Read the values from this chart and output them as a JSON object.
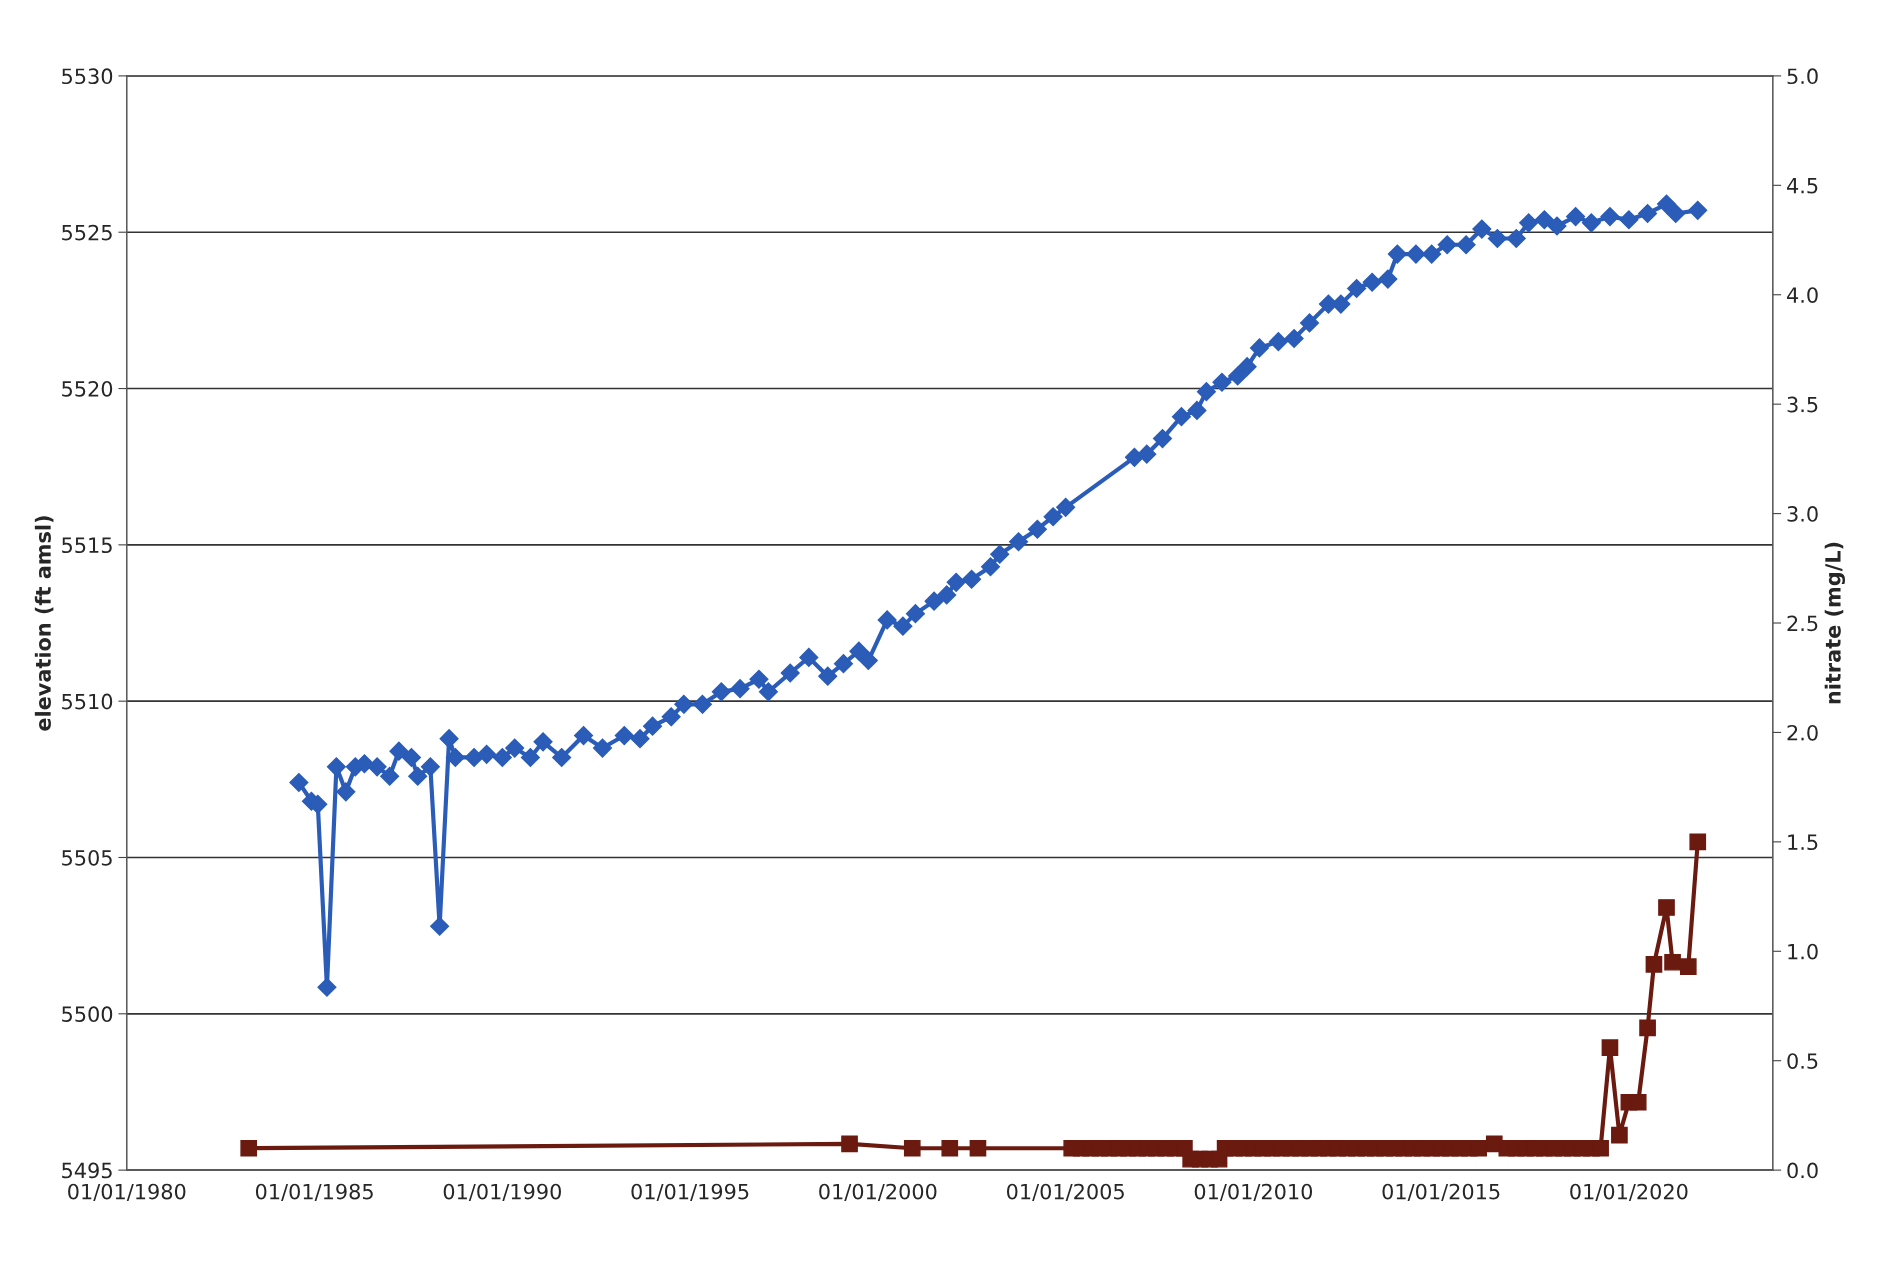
{
  "chart_data": {
    "type": "line",
    "ylabel": "elevation (ft amsl)",
    "y2label": "nitrate (mg/L)",
    "xlim": [
      "1980-01-01",
      "2023-11-01"
    ],
    "xticks": [
      {
        "value": "1980-01-01",
        "label": "01/01/1980"
      },
      {
        "value": "1985-01-01",
        "label": "01/01/1985"
      },
      {
        "value": "1990-01-01",
        "label": "01/01/1990"
      },
      {
        "value": "1995-01-01",
        "label": "01/01/1995"
      },
      {
        "value": "2000-01-01",
        "label": "01/01/2000"
      },
      {
        "value": "2005-01-01",
        "label": "01/01/2005"
      },
      {
        "value": "2010-01-01",
        "label": "01/01/2010"
      },
      {
        "value": "2015-01-01",
        "label": "01/01/2015"
      },
      {
        "value": "2020-01-01",
        "label": "01/01/2020"
      }
    ],
    "ylim": [
      5495,
      5530
    ],
    "yticks": [
      5495,
      5500,
      5505,
      5510,
      5515,
      5520,
      5525,
      5530
    ],
    "y2lim": [
      0,
      5
    ],
    "y2ticks": [
      {
        "value": 0,
        "label": "0.0"
      },
      {
        "value": 0.5,
        "label": "0.5"
      },
      {
        "value": 1,
        "label": "1.0"
      },
      {
        "value": 1.5,
        "label": "1.5"
      },
      {
        "value": 2,
        "label": "2.0"
      },
      {
        "value": 2.5,
        "label": "2.5"
      },
      {
        "value": 3,
        "label": "3.0"
      },
      {
        "value": 3.5,
        "label": "3.5"
      },
      {
        "value": 4,
        "label": "4.0"
      },
      {
        "value": 4.5,
        "label": "4.5"
      },
      {
        "value": 5,
        "label": "5.0"
      }
    ],
    "grid": "y",
    "line_style": "solid",
    "series": [
      {
        "color": "#2a5cb8",
        "marker": "diamond",
        "x": [
          "1984-08",
          "1984-12",
          "1985-02",
          "1985-05",
          "1985-08",
          "1985-11",
          "1986-02",
          "1986-05",
          "1986-09",
          "1987-01",
          "1987-04",
          "1987-08",
          "1987-10",
          "1988-02",
          "1988-05",
          "1988-08",
          "1988-10",
          "1989-04",
          "1989-08",
          "1990-01",
          "1990-05",
          "1990-10",
          "1991-02",
          "1991-08",
          "1992-03",
          "1992-09",
          "1993-04",
          "1993-09",
          "1994-01",
          "1994-07",
          "1994-11",
          "1995-05",
          "1995-11",
          "1996-05",
          "1996-11",
          "1997-02",
          "1997-09",
          "1998-03",
          "1998-09",
          "1999-02",
          "1999-07",
          "1999-10",
          "2000-04",
          "2000-09",
          "2001-01",
          "2001-07",
          "2001-11",
          "2002-02",
          "2002-07",
          "2003-01",
          "2003-04",
          "2003-10",
          "2004-04",
          "2004-09",
          "2005-01",
          "2006-11",
          "2007-03",
          "2007-08",
          "2008-02",
          "2008-07",
          "2008-10",
          "2009-03",
          "2009-08",
          "2009-11",
          "2010-03",
          "2010-09",
          "2011-02",
          "2011-07",
          "2012-01",
          "2012-05",
          "2012-10",
          "2013-03",
          "2013-08",
          "2013-11",
          "2014-05",
          "2014-10",
          "2015-03",
          "2015-09",
          "2016-02",
          "2016-07",
          "2017-01",
          "2017-05",
          "2017-10",
          "2018-02",
          "2018-08",
          "2019-01",
          "2019-07",
          "2020-01",
          "2020-07",
          "2021-01",
          "2021-04",
          "2021-11"
        ],
        "values": [
          5507.4,
          5506.8,
          5506.7,
          5500.85,
          5507.9,
          5507.1,
          5507.9,
          5508.0,
          5507.9,
          5507.6,
          5508.4,
          5508.2,
          5507.6,
          5507.9,
          5502.8,
          5508.8,
          5508.2,
          5508.2,
          5508.3,
          5508.2,
          5508.5,
          5508.2,
          5508.7,
          5508.2,
          5508.9,
          5508.5,
          5508.9,
          5508.8,
          5509.2,
          5509.5,
          5509.9,
          5509.9,
          5510.3,
          5510.4,
          5510.7,
          5510.3,
          5510.9,
          5511.4,
          5510.8,
          5511.2,
          5511.6,
          5511.3,
          5512.6,
          5512.4,
          5512.8,
          5513.2,
          5513.4,
          5513.8,
          5513.9,
          5514.3,
          5514.7,
          5515.1,
          5515.5,
          5515.9,
          5516.2,
          5517.8,
          5517.9,
          5518.4,
          5519.1,
          5519.3,
          5519.9,
          5520.2,
          5520.4,
          5520.7,
          5521.3,
          5521.5,
          5521.6,
          5522.1,
          5522.7,
          5522.7,
          5523.2,
          5523.4,
          5523.5,
          5524.3,
          5524.3,
          5524.3,
          5524.6,
          5524.6,
          5525.1,
          5524.8,
          5524.8,
          5525.3,
          5525.4,
          5525.2,
          5525.5,
          5525.3,
          5525.5,
          5525.4,
          5525.6,
          5525.9,
          5525.6,
          5525.7
        ]
      },
      {
        "color": "#6b1a10",
        "marker": "square",
        "axis": "y2",
        "x": [
          "1983-04",
          "1999-04",
          "2000-12",
          "2001-12",
          "2002-09",
          "2005-03",
          "2005-06",
          "2005-09",
          "2005-12",
          "2006-03",
          "2006-06",
          "2006-09",
          "2006-12",
          "2007-03",
          "2007-06",
          "2007-09",
          "2007-12",
          "2008-03",
          "2008-05",
          "2008-08",
          "2008-11",
          "2009-02",
          "2009-04",
          "2009-07",
          "2009-10",
          "2010-01",
          "2010-04",
          "2010-07",
          "2010-10",
          "2011-01",
          "2011-04",
          "2011-07",
          "2011-10",
          "2012-01",
          "2012-04",
          "2012-07",
          "2012-10",
          "2013-01",
          "2013-04",
          "2013-07",
          "2013-10",
          "2014-01",
          "2014-04",
          "2014-07",
          "2014-10",
          "2015-01",
          "2015-04",
          "2015-07",
          "2015-10",
          "2016-01",
          "2016-06",
          "2016-10",
          "2017-01",
          "2017-04",
          "2017-07",
          "2017-10",
          "2018-01",
          "2018-04",
          "2018-07",
          "2018-10",
          "2019-01",
          "2019-04",
          "2019-07",
          "2019-10",
          "2020-01",
          "2020-04",
          "2020-07",
          "2020-09",
          "2021-01",
          "2021-03",
          "2021-08",
          "2021-11"
        ],
        "values": [
          0.1,
          0.12,
          0.1,
          0.1,
          0.1,
          0.1,
          0.1,
          0.1,
          0.1,
          0.1,
          0.1,
          0.1,
          0.1,
          0.1,
          0.1,
          0.1,
          0.1,
          0.1,
          0.05,
          0.05,
          0.05,
          0.05,
          0.1,
          0.1,
          0.1,
          0.1,
          0.1,
          0.1,
          0.1,
          0.1,
          0.1,
          0.1,
          0.1,
          0.1,
          0.1,
          0.1,
          0.1,
          0.1,
          0.1,
          0.1,
          0.1,
          0.1,
          0.1,
          0.1,
          0.1,
          0.1,
          0.1,
          0.1,
          0.1,
          0.1,
          0.12,
          0.1,
          0.1,
          0.1,
          0.1,
          0.1,
          0.1,
          0.1,
          0.1,
          0.1,
          0.1,
          0.1,
          0.56,
          0.16,
          0.31,
          0.31,
          0.65,
          0.94,
          1.2,
          0.95,
          0.93,
          1.5
        ]
      }
    ]
  }
}
